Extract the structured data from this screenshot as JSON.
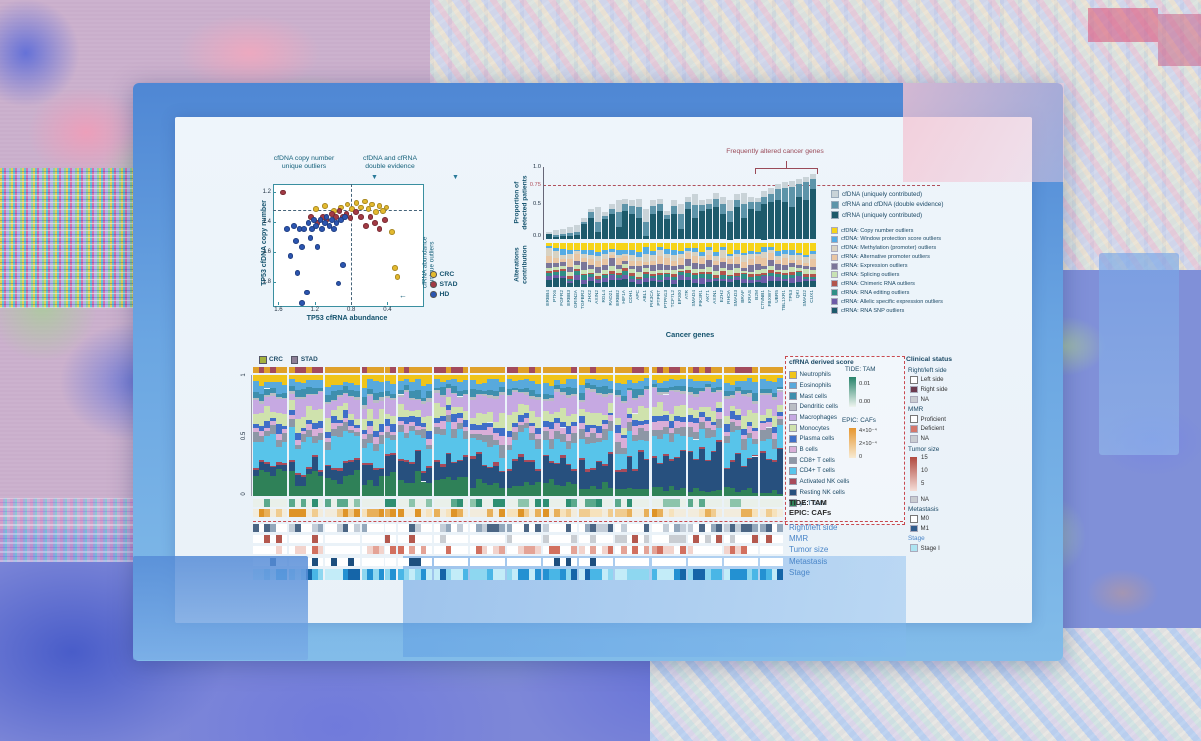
{
  "chart_data": [
    {
      "type": "scatter",
      "xlabel": "TP53 cfRNA abundance",
      "ylabel": "TP53 cfDNA copy number",
      "x_ticks": [
        "1.6",
        "1.2",
        "0.8",
        "0.4"
      ],
      "y_ticks": [
        "1.2",
        "1.4",
        "1.6",
        "1.8"
      ],
      "x_range": [
        1.66,
        0.02
      ],
      "y_range": [
        1.15,
        1.95
      ],
      "threshold_x": 0.8,
      "threshold_y": 1.32,
      "annotations": {
        "left": "cfDNA copy number\nunique outliers",
        "right": "cfDNA and cfRNA\ndouble evidence",
        "side": "cfRNA abundance\nunique outliers",
        "down_arrow": "▼",
        "left_arrow": "←"
      },
      "series": [
        {
          "name": "CRC",
          "color": "#e3b92e",
          "points": [
            [
              1.2,
              1.31
            ],
            [
              1.1,
              1.29
            ],
            [
              1.0,
              1.32
            ],
            [
              0.92,
              1.3
            ],
            [
              0.85,
              1.28
            ],
            [
              0.8,
              1.31
            ],
            [
              0.75,
              1.27
            ],
            [
              0.7,
              1.3
            ],
            [
              0.66,
              1.26
            ],
            [
              0.62,
              1.31
            ],
            [
              0.58,
              1.28
            ],
            [
              0.54,
              1.33
            ],
            [
              0.5,
              1.29
            ],
            [
              0.46,
              1.32
            ],
            [
              0.42,
              1.3
            ],
            [
              0.36,
              1.46
            ],
            [
              0.33,
              1.7
            ],
            [
              0.3,
              1.76
            ]
          ]
        },
        {
          "name": "STAD",
          "color": "#a23a44",
          "points": [
            [
              1.56,
              1.2
            ],
            [
              1.25,
              1.36
            ],
            [
              1.18,
              1.4
            ],
            [
              1.12,
              1.36
            ],
            [
              1.08,
              1.38
            ],
            [
              1.02,
              1.34
            ],
            [
              0.98,
              1.36
            ],
            [
              0.94,
              1.32
            ],
            [
              0.9,
              1.36
            ],
            [
              0.86,
              1.34
            ],
            [
              0.82,
              1.37
            ],
            [
              0.76,
              1.33
            ],
            [
              0.7,
              1.36
            ],
            [
              0.65,
              1.42
            ],
            [
              0.6,
              1.36
            ],
            [
              0.55,
              1.4
            ],
            [
              0.5,
              1.44
            ],
            [
              0.44,
              1.38
            ]
          ]
        },
        {
          "name": "HD",
          "color": "#2b55b0",
          "points": [
            [
              1.52,
              1.44
            ],
            [
              1.48,
              1.62
            ],
            [
              1.44,
              1.42
            ],
            [
              1.4,
              1.73
            ],
            [
              1.38,
              1.44
            ],
            [
              1.35,
              1.56
            ],
            [
              1.33,
              1.44
            ],
            [
              1.3,
              1.86
            ],
            [
              1.28,
              1.4
            ],
            [
              1.26,
              1.5
            ],
            [
              1.24,
              1.44
            ],
            [
              1.22,
              1.38
            ],
            [
              1.2,
              1.42
            ],
            [
              1.18,
              1.56
            ],
            [
              1.15,
              1.38
            ],
            [
              1.13,
              1.44
            ],
            [
              1.1,
              1.4
            ],
            [
              1.08,
              1.36
            ],
            [
              1.05,
              1.42
            ],
            [
              1.02,
              1.38
            ],
            [
              1.0,
              1.44
            ],
            [
              0.97,
              1.4
            ],
            [
              0.95,
              1.8
            ],
            [
              0.92,
              1.38
            ],
            [
              0.9,
              1.68
            ],
            [
              0.88,
              1.36
            ],
            [
              1.35,
              1.93
            ],
            [
              1.42,
              1.52
            ]
          ]
        }
      ]
    },
    {
      "type": "bar",
      "xlabel": "Cancer genes",
      "ylabel_top": "Proportion of\ndetected patients",
      "ylabel_bottom": "Alterations\ncontribution",
      "y_ticks_top": [
        "1.0",
        "0.5",
        "0.0"
      ],
      "threshold": 0.75,
      "threshold_label": "0.75",
      "bracket_label": "Frequently altered cancer genes",
      "bracket_span": [
        30,
        38
      ],
      "genes": [
        "ERBB4",
        "PTK6",
        "FGFR2",
        "ERBB3",
        "GRIN2A",
        "TGFBR2",
        "ZHX2",
        "AXIN2",
        "RGL4",
        "RAD21",
        "ERBB2",
        "HIF1A",
        "CDH1",
        "APC",
        "ABL1",
        "PIK3CA",
        "PTPRT",
        "PTPN13",
        "TCF7L2",
        "EP300",
        "ATR",
        "SMAD4",
        "PIK3R1",
        "AKT1",
        "AXIN1",
        "EZH2",
        "RHOA",
        "SMAD3",
        "BRAF",
        "KRAS",
        "B2M",
        "CTNNB1",
        "FBXW7",
        "UBR5",
        "TBL1XR1",
        "TP53",
        "QKI",
        "SMAD2",
        "CUX1"
      ],
      "series": [
        {
          "name": "cfRNA (uniquely contributed)",
          "color": "#1d5a6b",
          "values": [
            0.08,
            0.04,
            0.05,
            0.05,
            0.06,
            0.22,
            0.3,
            0.1,
            0.28,
            0.35,
            0.18,
            0.4,
            0.35,
            0.3,
            0.05,
            0.35,
            0.4,
            0.28,
            0.35,
            0.15,
            0.42,
            0.3,
            0.4,
            0.42,
            0.45,
            0.35,
            0.25,
            0.45,
            0.3,
            0.42,
            0.4,
            0.5,
            0.52,
            0.55,
            0.52,
            0.45,
            0.6,
            0.55,
            0.7
          ]
        },
        {
          "name": "cfRNA and cfDNA (double evidence)",
          "color": "#5d94a9",
          "values": [
            0.0,
            0.02,
            0.03,
            0.04,
            0.05,
            0.03,
            0.08,
            0.15,
            0.05,
            0.08,
            0.2,
            0.1,
            0.12,
            0.15,
            0.2,
            0.12,
            0.1,
            0.06,
            0.12,
            0.2,
            0.1,
            0.18,
            0.08,
            0.08,
            0.12,
            0.15,
            0.15,
            0.1,
            0.2,
            0.1,
            0.12,
            0.1,
            0.12,
            0.15,
            0.2,
            0.28,
            0.17,
            0.25,
            0.15
          ]
        },
        {
          "name": "cfDNA (uniquely contributed)",
          "color": "#c9d3d8",
          "values": [
            0.02,
            0.07,
            0.07,
            0.08,
            0.09,
            0.05,
            0.05,
            0.2,
            0.05,
            0.07,
            0.17,
            0.07,
            0.08,
            0.12,
            0.17,
            0.08,
            0.07,
            0.06,
            0.08,
            0.15,
            0.08,
            0.15,
            0.07,
            0.07,
            0.08,
            0.1,
            0.15,
            0.08,
            0.15,
            0.08,
            0.06,
            0.08,
            0.08,
            0.08,
            0.08,
            0.09,
            0.08,
            0.08,
            0.07
          ]
        }
      ],
      "legend_top": [
        {
          "label": "cfDNA (uniquely contributed)",
          "color": "#c9d3d8"
        },
        {
          "label": "cfRNA and cfDNA (double evidence)",
          "color": "#5d94a9"
        },
        {
          "label": "cfRNA (uniquely contributed)",
          "color": "#1d5a6b"
        }
      ],
      "alterations": {
        "seed": 7,
        "base_weights": [
          0.16,
          0.09,
          0.11,
          0.12,
          0.11,
          0.08,
          0.05,
          0.07,
          0.09,
          0.12
        ],
        "categories": [
          {
            "label": "cfDNA: Copy number outliers",
            "color": "#f6d419"
          },
          {
            "label": "cfDNA: Window protection score outliers",
            "color": "#54abe4"
          },
          {
            "label": "cfDNA: Methylation (promoter) outliers",
            "color": "#d8d2c2"
          },
          {
            "label": "cfRNA: Alternative promoter outliers",
            "color": "#e9c6a3"
          },
          {
            "label": "cfRNA: Expression outliers",
            "color": "#7b7699"
          },
          {
            "label": "cfRNA: Splicing outliers",
            "color": "#c8e2b4"
          },
          {
            "label": "cfRNA: Chimeric RNA outliers",
            "color": "#b2544c"
          },
          {
            "label": "cfRNA: RNA editing outliers",
            "color": "#2f8f86"
          },
          {
            "label": "cfRNA: Allelic specific expression outliers",
            "color": "#6e5ba8"
          },
          {
            "label": "cfRNA: RNA SNP outliers",
            "color": "#1d5a6b"
          }
        ]
      }
    },
    {
      "type": "stacked-bar-proportions",
      "n_samples": 88,
      "group_size": 6,
      "seed": 11,
      "y_ticks": [
        "1",
        "0.5",
        "0"
      ],
      "top_legend": [
        {
          "label": "CRC",
          "color": "#a3b13e"
        },
        {
          "label": "STAD",
          "color": "#8d7f96"
        }
      ],
      "type_row": {
        "crc_color": "#dfa02a",
        "stad_color": "#a34a5c",
        "p_stad_start": 0.25,
        "p_stad_end": 0.6,
        "seed": 3
      },
      "legend_header": "cfRNA derived score",
      "cells": [
        {
          "label": "Neutrophils",
          "color": "#f0c419"
        },
        {
          "label": "Eosinophils",
          "color": "#58a9dc"
        },
        {
          "label": "Mast cells",
          "color": "#3e8fae"
        },
        {
          "label": "Dendritic cells",
          "color": "#b9bdc4"
        },
        {
          "label": "Macrophages",
          "color": "#c6a9e2"
        },
        {
          "label": "Monocytes",
          "color": "#cfe2ad"
        },
        {
          "label": "Plasma cells",
          "color": "#3f6fc8"
        },
        {
          "label": "B cells",
          "color": "#d9aed8"
        },
        {
          "label": "CD8+ T cells",
          "color": "#8d97a6"
        },
        {
          "label": "CD4+ T cells",
          "color": "#58c4ea"
        },
        {
          "label": "Activated NK cells",
          "color": "#a84a5a"
        },
        {
          "label": "Resting NK cells",
          "color": "#27507e"
        },
        {
          "label": "γδ T cells",
          "color": "#2f8158"
        }
      ],
      "stack": [
        {
          "name": "γδ T cells",
          "color": "#2f8158",
          "range": [
            0.17,
            0.03
          ]
        },
        {
          "name": "Resting NK cells",
          "color": "#27507e",
          "range": [
            0.05,
            0.3
          ]
        },
        {
          "name": "Activated NK cells",
          "color": "#a84a5a",
          "range": [
            0.02,
            0.01
          ]
        },
        {
          "name": "CD4+ T cells",
          "color": "#58c4ea",
          "range": [
            0.21,
            0.15
          ]
        },
        {
          "name": "CD8+ T cells",
          "color": "#8d97a6",
          "range": [
            0.06,
            0.07
          ]
        },
        {
          "name": "B cells",
          "color": "#d9aed8",
          "range": [
            0.04,
            0.05
          ]
        },
        {
          "name": "Plasma cells",
          "color": "#3f6fc8",
          "range": [
            0.05,
            0.04
          ]
        },
        {
          "name": "Monocytes",
          "color": "#cfe2ad",
          "range": [
            0.09,
            0.08
          ]
        },
        {
          "name": "Macrophages",
          "color": "#c6a9e2",
          "range": [
            0.11,
            0.12
          ]
        },
        {
          "name": "Dendritic cells",
          "color": "#b9bdc4",
          "range": [
            0.02,
            0.02
          ]
        },
        {
          "name": "Mast cells",
          "color": "#3e8fae",
          "range": [
            0.05,
            0.04
          ]
        },
        {
          "name": "Eosinophils",
          "color": "#58a9dc",
          "range": [
            0.07,
            0.06
          ]
        },
        {
          "name": "Neutrophils",
          "color": "#f0c419",
          "range": [
            0.06,
            0.05
          ]
        }
      ],
      "gradient_keys": [
        {
          "label": "TIDE: TAM",
          "colors": [
            "#27836b",
            "#eef4ef"
          ],
          "tick_labels": [
            "0.01",
            "0.00"
          ]
        },
        {
          "label": "EPIC: CAFs",
          "colors": [
            "#e6962e",
            "#f7ead2"
          ],
          "tick_labels": [
            "4×10⁻⁴",
            "2×10⁻⁴",
            "0"
          ]
        }
      ],
      "annotation_rows": [
        {
          "key": "tide",
          "label": "TIDE: TAM",
          "label_color": "#2b2b2b",
          "palette": [
            "#2e8f72",
            "#5aa98c",
            "#8cc4ab"
          ],
          "blank": "#e9f0ea",
          "p": 0.42,
          "seed": 21,
          "h": 8
        },
        {
          "key": "epic",
          "label": "EPIC: CAFs",
          "label_color": "#2b2b2b",
          "palette": [
            "#de9428",
            "#e8b05a",
            "#f0cc90",
            "#f6e2bc"
          ],
          "blank": "#f2ecdd",
          "p": 0.5,
          "seed": 22,
          "h": 8
        },
        {
          "key": "rightleft",
          "label": "Right/left side",
          "label_color": "#4a86c8",
          "palette": [
            "#4a6584",
            "#93a7bb",
            "#c3cdd8"
          ],
          "blank": "#ffffff",
          "p": 0.62,
          "seed": 23,
          "h": 8
        },
        {
          "key": "mmr",
          "label": "MMR",
          "label_color": "#4a86c8",
          "palette": [
            "#b4584e",
            "#c9cdd2"
          ],
          "blank": "#ffffff",
          "p": 0.3,
          "seed": 24,
          "h": 8
        },
        {
          "key": "tumorsize",
          "label": "Tumor size",
          "label_color": "#4a86c8",
          "palette": [
            "#f2d3cc",
            "#e4a396",
            "#d2705f"
          ],
          "blank": "#ffffff",
          "p": 0.38,
          "seed": 25,
          "h": 8
        },
        {
          "key": "metastasis",
          "label": "Metastasis",
          "label_color": "#4a86c8",
          "palette": [
            "#1e4f7e"
          ],
          "blank": "#ffffff",
          "p": 0.13,
          "seed": 26,
          "h": 8
        },
        {
          "key": "stage",
          "label": "Stage",
          "label_color": "#4a86c8",
          "palette": [
            "#c3ecf8",
            "#8ed7f0",
            "#49b6e6",
            "#2391d2",
            "#1565a8"
          ],
          "blank": "#ffffff",
          "p": 1.0,
          "seed": 27,
          "h": 11
        }
      ],
      "clinical": {
        "header": "Clinical status",
        "groups": [
          {
            "title": "Right/left side",
            "items": [
              {
                "label": "Left side",
                "color": "#ffffff",
                "border": true
              },
              {
                "label": "Right side",
                "color": "#6b3a4e"
              },
              {
                "label": "NA",
                "color": "#c9ccd1"
              }
            ]
          },
          {
            "title": "MMR",
            "items": [
              {
                "label": "Proficient",
                "color": "#ffffff",
                "border": true
              },
              {
                "label": "Deficient",
                "color": "#d4766a"
              },
              {
                "label": "NA",
                "color": "#c9ccd1"
              }
            ]
          },
          {
            "title": "Tumor size",
            "gradient": {
              "colors": [
                "#b0493f",
                "#f5ded8"
              ],
              "labels": [
                "15",
                "10",
                "5"
              ]
            },
            "na": {
              "label": "NA",
              "color": "#c9ccd1"
            }
          },
          {
            "title": "Metastasis",
            "items": [
              {
                "label": "M0",
                "color": "#ffffff",
                "border": true
              },
              {
                "label": "M1",
                "color": "#2e5a8a"
              }
            ]
          },
          {
            "title": "Stage",
            "title_color": "#4a86c8",
            "items": [
              {
                "label": "Stage I",
                "color": "#aee4f2"
              }
            ]
          }
        ]
      }
    }
  ]
}
